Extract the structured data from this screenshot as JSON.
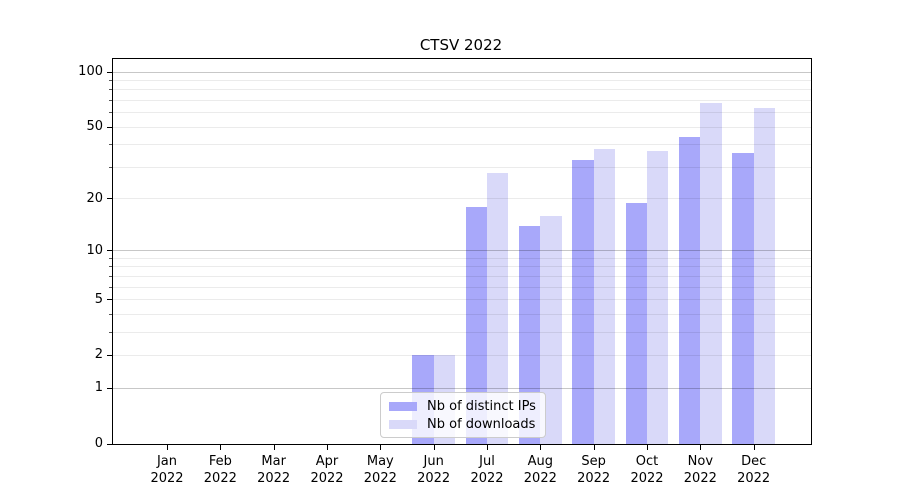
{
  "title": "CTSV 2022",
  "chart_data": {
    "type": "bar",
    "title": "CTSV 2022",
    "x": [
      "Jan",
      "Feb",
      "Mar",
      "Apr",
      "May",
      "Jun",
      "Jul",
      "Aug",
      "Sep",
      "Oct",
      "Nov",
      "Dec"
    ],
    "x_year": "2022",
    "series": [
      {
        "name": "Nb of distinct IPs",
        "color": "#a8a8fa",
        "values": [
          0,
          0,
          0,
          0,
          0,
          2,
          18,
          14,
          33,
          19,
          44,
          36
        ]
      },
      {
        "name": "Nb of downloads",
        "color": "#d9d9f9",
        "values": [
          0,
          0,
          0,
          0,
          0,
          2,
          28,
          16,
          38,
          37,
          68,
          64
        ]
      }
    ],
    "yscale": "log1p",
    "ylim": [
      0,
      118
    ],
    "y_ticks": [
      0,
      1,
      2,
      5,
      10,
      20,
      50,
      100
    ],
    "major_gridlines": [
      1,
      10,
      100
    ],
    "minor_gridlines": [
      2,
      3,
      4,
      5,
      6,
      7,
      8,
      9,
      20,
      30,
      40,
      50,
      60,
      70,
      80,
      90
    ],
    "grid": true,
    "legend": {
      "position": "lower-center-inside",
      "labels": [
        "Nb of distinct IPs",
        "Nb of downloads"
      ]
    },
    "colors": {
      "frame": "#000000",
      "major_grid": "rgba(0,0,0,0.22)",
      "minor_grid": "rgba(0,0,0,0.08)",
      "legend_border": "#cccccc",
      "legend_bg": "rgba(255,255,255,0.8)"
    }
  }
}
